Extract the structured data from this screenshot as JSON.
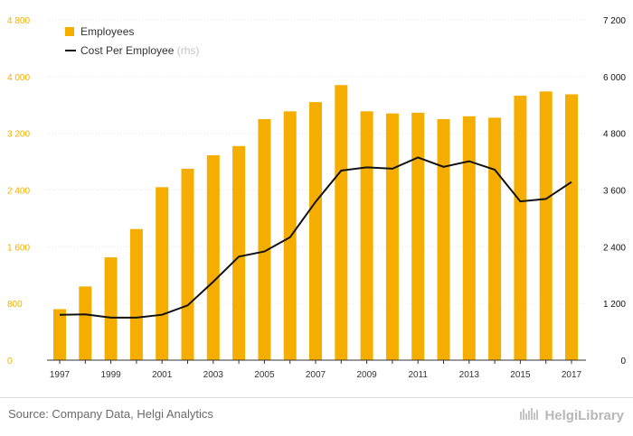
{
  "chart_data": {
    "type": "bar",
    "categories": [
      "1997",
      "1998",
      "1999",
      "2000",
      "2001",
      "2002",
      "2003",
      "2004",
      "2005",
      "2006",
      "2007",
      "2008",
      "2009",
      "2010",
      "2011",
      "2012",
      "2013",
      "2014",
      "2015",
      "2016",
      "2017"
    ],
    "x_tick_labels": [
      "1997",
      "1999",
      "2001",
      "2003",
      "2005",
      "2007",
      "2009",
      "2011",
      "2013",
      "2015",
      "2017"
    ],
    "series": [
      {
        "name": "Employees",
        "kind": "bar",
        "axis": "left",
        "color": "#f5ae00",
        "values": [
          720,
          1040,
          1450,
          1850,
          2440,
          2700,
          2890,
          3020,
          3400,
          3510,
          3640,
          3880,
          3510,
          3480,
          3490,
          3400,
          3440,
          3420,
          3730,
          3790,
          3750
        ]
      },
      {
        "name": "Cost Per Employee",
        "name_suffix": "(rhs)",
        "kind": "line",
        "axis": "right",
        "color": "#111111",
        "values": [
          960,
          970,
          900,
          900,
          960,
          1160,
          1660,
          2190,
          2300,
          2600,
          3350,
          4010,
          4080,
          4050,
          4290,
          4090,
          4210,
          4030,
          3360,
          3410,
          3770
        ]
      }
    ],
    "y_left": {
      "ticks": [
        0,
        800,
        1600,
        2400,
        3200,
        4000,
        4800
      ],
      "tick_labels": [
        "0",
        "800",
        "1 600",
        "2 400",
        "3 200",
        "4 000",
        "4 800"
      ],
      "range": [
        0,
        4800
      ],
      "color": "#f5ae00"
    },
    "y_right": {
      "ticks": [
        0,
        1200,
        2400,
        3600,
        4800,
        6000,
        7200
      ],
      "tick_labels": [
        "0",
        "1 200",
        "2 400",
        "3 600",
        "4 800",
        "6 000",
        "7 200"
      ],
      "range": [
        0,
        7200
      ],
      "color": "#111111"
    },
    "grid": true,
    "legend": "top-left"
  },
  "footer": {
    "source": "Source: Company Data, Helgi Analytics",
    "brand": "HelgiLibrary"
  }
}
